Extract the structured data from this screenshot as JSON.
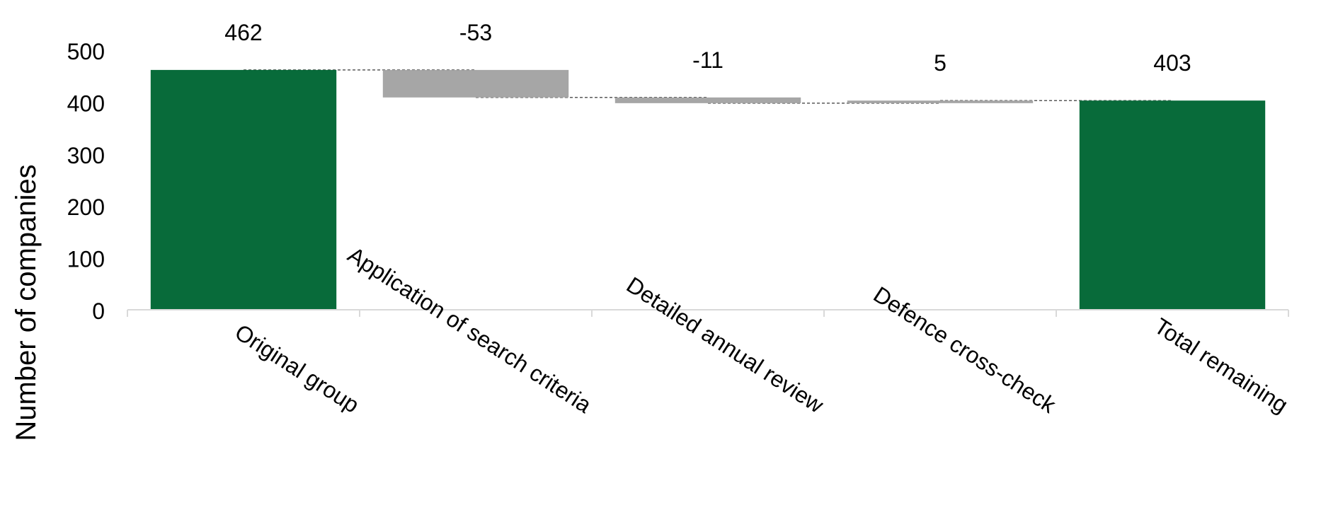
{
  "chart_data": {
    "type": "bar",
    "subtype": "waterfall",
    "categories": [
      "Original group",
      "Application of search criteria",
      "Detailed annual review",
      "Defence cross-check",
      "Total remaining"
    ],
    "values": [
      462,
      -53,
      -11,
      5,
      403
    ],
    "data_labels": [
      "462",
      "-53",
      "-11",
      "5",
      "403"
    ],
    "bar_kinds": [
      "total",
      "change",
      "change",
      "change",
      "total"
    ],
    "ylabel": "Number of companies",
    "ylim": [
      0,
      500
    ],
    "yticks": [
      0,
      100,
      200,
      300,
      400,
      500
    ],
    "ytick_labels": [
      "0",
      "100",
      "200",
      "300",
      "400",
      "500"
    ],
    "grid": false,
    "legend": "none",
    "colors": {
      "total": "#086b3a",
      "change": "#a6a6a6",
      "connector": "#595959",
      "axis": "#d9d9d9"
    }
  }
}
